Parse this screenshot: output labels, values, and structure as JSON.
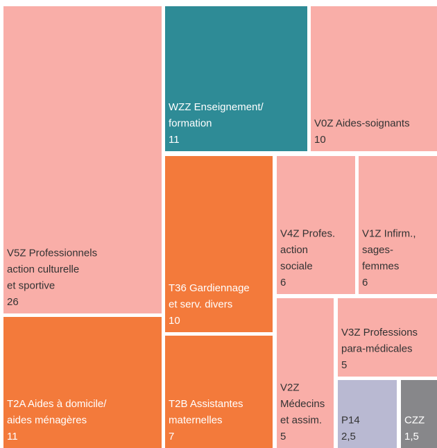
{
  "chart_data": {
    "type": "treemap",
    "categories": [
      [
        "V5Z Professionnels",
        "action culturelle",
        "et sportive"
      ],
      [
        "T2A Aides à domicile/",
        "aides ménagères"
      ],
      [
        "WZZ Enseignement/",
        "formation"
      ],
      [
        "V0Z Aides-soignants"
      ],
      [
        "T36 Gardiennage",
        "et serv. divers"
      ],
      [
        "T2B Assistantes",
        "maternelles"
      ],
      [
        "V4Z Profes.",
        "action",
        "sociale"
      ],
      [
        "V1Z Infirm.,",
        "sages-",
        "femmes"
      ],
      [
        "V2Z",
        "Médecins",
        "et assim."
      ],
      [
        "V3Z Professions",
        "para-médicales"
      ],
      [
        "P14"
      ],
      [
        "CZZ"
      ]
    ],
    "values": [
      26,
      11,
      11,
      10,
      10,
      7,
      6,
      6,
      5,
      5,
      2.5,
      1.5
    ],
    "value_labels": [
      "26",
      "11",
      "11",
      "10",
      "10",
      "7",
      "6",
      "6",
      "5",
      "5",
      "2,5",
      "1,5"
    ],
    "colors": [
      "#f9aea8",
      "#f37a3b",
      "#2e8b96",
      "#f9aea8",
      "#f37a3b",
      "#f37a3b",
      "#f9aea8",
      "#f9aea8",
      "#f9aea8",
      "#f9aea8",
      "#b9b9d2",
      "#87878a"
    ]
  }
}
